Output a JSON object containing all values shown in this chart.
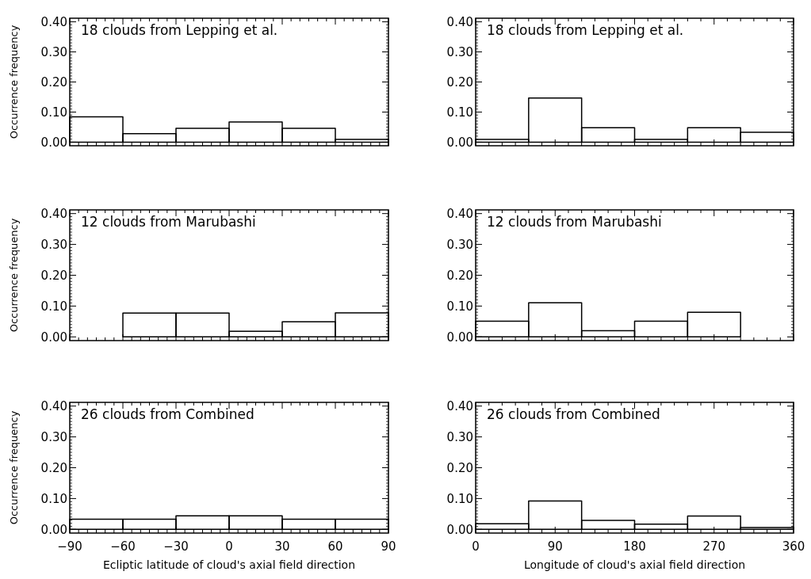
{
  "chart_data": [
    {
      "type": "histogram",
      "title": "18 clouds from Lepping et al.",
      "ylabel": "Occurrence frequency",
      "bins": [
        -90,
        -60,
        -30,
        0,
        30,
        60,
        90
      ],
      "values": [
        0.084,
        0.028,
        0.046,
        0.067,
        0.046,
        0.009
      ],
      "color": "#000000",
      "xlim": [
        -90,
        90
      ],
      "xticks": [
        -90,
        -60,
        -30,
        0,
        30,
        60,
        90
      ],
      "ylim": [
        -0.012,
        0.412
      ],
      "yticks": [
        {
          "value": 0,
          "label": "0.00"
        },
        {
          "value": 0.1,
          "label": "0.10"
        },
        {
          "value": 0.2,
          "label": "0.20"
        },
        {
          "value": 0.3,
          "label": "0.30"
        },
        {
          "value": 0.4,
          "label": "0.40"
        }
      ],
      "tick_labels": "y"
    },
    {
      "type": "histogram",
      "title": "18 clouds from Lepping et al.",
      "bins": [
        0,
        60,
        120,
        180,
        240,
        300,
        360
      ],
      "values": [
        0.009,
        0.147,
        0.048,
        0.009,
        0.048,
        0.033
      ],
      "color": "#000000",
      "xlim": [
        0,
        360
      ],
      "xticks": [
        0,
        90,
        180,
        270,
        360
      ],
      "ylim": [
        -0.012,
        0.412
      ],
      "yticks": [
        {
          "value": 0,
          "label": "0.00"
        },
        {
          "value": 0.1,
          "label": "0.10"
        },
        {
          "value": 0.2,
          "label": "0.20"
        },
        {
          "value": 0.3,
          "label": "0.30"
        },
        {
          "value": 0.4,
          "label": "0.40"
        }
      ],
      "tick_labels": "y"
    },
    {
      "type": "histogram",
      "title": "12 clouds from Marubashi",
      "ylabel": "Occurrence frequency",
      "bins": [
        -90,
        -60,
        -30,
        0,
        30,
        60,
        90
      ],
      "values": [
        0,
        0.077,
        0.077,
        0.018,
        0.049,
        0.078
      ],
      "color": "#000000",
      "xlim": [
        -90,
        90
      ],
      "xticks": [
        -90,
        -60,
        -30,
        0,
        30,
        60,
        90
      ],
      "ylim": [
        -0.012,
        0.412
      ],
      "yticks": [
        {
          "value": 0,
          "label": "0.00"
        },
        {
          "value": 0.1,
          "label": "0.10"
        },
        {
          "value": 0.2,
          "label": "0.20"
        },
        {
          "value": 0.3,
          "label": "0.30"
        },
        {
          "value": 0.4,
          "label": "0.40"
        }
      ],
      "tick_labels": "y"
    },
    {
      "type": "histogram",
      "title": "12 clouds from Marubashi",
      "bins": [
        0,
        60,
        120,
        180,
        240,
        300,
        360
      ],
      "values": [
        0.051,
        0.111,
        0.02,
        0.051,
        0.08,
        0
      ],
      "color": "#000000",
      "xlim": [
        0,
        360
      ],
      "xticks": [
        0,
        90,
        180,
        270,
        360
      ],
      "ylim": [
        -0.012,
        0.412
      ],
      "yticks": [
        {
          "value": 0,
          "label": "0.00"
        },
        {
          "value": 0.1,
          "label": "0.10"
        },
        {
          "value": 0.2,
          "label": "0.20"
        },
        {
          "value": 0.3,
          "label": "0.30"
        },
        {
          "value": 0.4,
          "label": "0.40"
        }
      ],
      "tick_labels": "y"
    },
    {
      "type": "histogram",
      "title": "26 clouds from Combined",
      "ylabel": "Occurrence frequency",
      "xlabel": "Ecliptic latitude of cloud's axial field direction",
      "bins": [
        -90,
        -60,
        -30,
        0,
        30,
        60,
        90
      ],
      "values": [
        0.033,
        0.033,
        0.044,
        0.044,
        0.033,
        0.033
      ],
      "color": "#000000",
      "xlim": [
        -90,
        90
      ],
      "xticks": [
        {
          "value": -90,
          "label": "−90"
        },
        {
          "value": -60,
          "label": "−60"
        },
        {
          "value": -30,
          "label": "−30"
        },
        0,
        30,
        60,
        90
      ],
      "ylim": [
        -0.012,
        0.412
      ],
      "yticks": [
        {
          "value": 0,
          "label": "0.00"
        },
        {
          "value": 0.1,
          "label": "0.10"
        },
        {
          "value": 0.2,
          "label": "0.20"
        },
        {
          "value": 0.3,
          "label": "0.30"
        },
        {
          "value": 0.4,
          "label": "0.40"
        }
      ]
    },
    {
      "type": "histogram",
      "title": "26 clouds from Combined",
      "xlabel": "Longitude of cloud's axial field direction",
      "bins": [
        0,
        60,
        120,
        180,
        240,
        300,
        360
      ],
      "values": [
        0.018,
        0.092,
        0.029,
        0.017,
        0.043,
        0.006
      ],
      "color": "#000000",
      "xlim": [
        0,
        360
      ],
      "xticks": [
        0,
        90,
        180,
        270,
        360
      ],
      "ylim": [
        -0.012,
        0.412
      ],
      "yticks": [
        {
          "value": 0,
          "label": "0.00"
        },
        {
          "value": 0.1,
          "label": "0.10"
        },
        {
          "value": 0.2,
          "label": "0.20"
        },
        {
          "value": 0.3,
          "label": "0.30"
        },
        {
          "value": 0.4,
          "label": "0.40"
        }
      ]
    }
  ]
}
